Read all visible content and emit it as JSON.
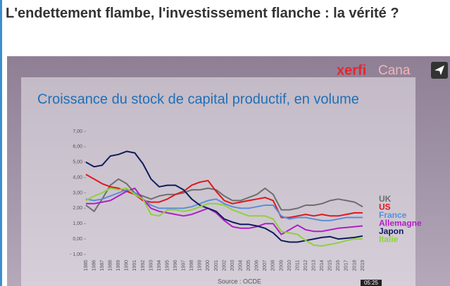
{
  "page_title": "L'endettement flambe, l'investissement flanche : la vérité ?",
  "brand": "xerfi",
  "brand_channel": "Cana",
  "duration": "05:25",
  "chart_data": {
    "type": "line",
    "title": "Croissance du stock de capital productif, en volume",
    "source": "Source : OCDE",
    "categories": [
      "1985",
      "1986",
      "1987",
      "1988",
      "1989",
      "1990",
      "1991",
      "1992",
      "1993",
      "1994",
      "1995",
      "1996",
      "1997",
      "1998",
      "1999",
      "2000",
      "2001",
      "2002",
      "2003",
      "2004",
      "2005",
      "2006",
      "2007",
      "2008",
      "2009",
      "2010",
      "2011",
      "2012",
      "2013",
      "2014",
      "2015",
      "2016",
      "2017",
      "2018",
      "2019"
    ],
    "ylim": [
      -1,
      7
    ],
    "yticks": [
      {
        "value": -1,
        "label": "- 1,00"
      },
      {
        "value": 0,
        "label": "0,00"
      },
      {
        "value": 1,
        "label": "1,00"
      },
      {
        "value": 2,
        "label": "2,00"
      },
      {
        "value": 3,
        "label": "3,00"
      },
      {
        "value": 4,
        "label": "4,00"
      },
      {
        "value": 5,
        "label": "5,00"
      },
      {
        "value": 6,
        "label": "6,00"
      },
      {
        "value": 7,
        "label": "7,00"
      }
    ],
    "series": [
      {
        "name": "UK",
        "color": "#6e6e6e",
        "values": [
          2.2,
          1.8,
          2.6,
          3.5,
          3.9,
          3.6,
          3.0,
          2.8,
          2.6,
          2.8,
          2.9,
          2.9,
          3.0,
          3.2,
          3.2,
          3.3,
          3.2,
          2.8,
          2.5,
          2.5,
          2.7,
          2.9,
          3.3,
          2.9,
          1.9,
          1.9,
          2.0,
          2.2,
          2.2,
          2.3,
          2.5,
          2.6,
          2.5,
          2.4,
          2.1
        ]
      },
      {
        "name": "US",
        "color": "#e0161c",
        "values": [
          4.2,
          3.9,
          3.6,
          3.4,
          3.3,
          3.1,
          2.9,
          2.5,
          2.4,
          2.4,
          2.6,
          2.9,
          3.1,
          3.5,
          3.7,
          3.8,
          3.1,
          2.5,
          2.3,
          2.4,
          2.5,
          2.6,
          2.7,
          2.5,
          1.4,
          1.4,
          1.5,
          1.6,
          1.5,
          1.6,
          1.5,
          1.5,
          1.6,
          1.7,
          1.7
        ]
      },
      {
        "name": "France",
        "color": "#5b8ed6",
        "values": [
          2.6,
          2.5,
          2.6,
          2.8,
          3.0,
          3.2,
          3.0,
          2.6,
          2.2,
          2.0,
          2.0,
          2.0,
          2.0,
          2.1,
          2.3,
          2.5,
          2.6,
          2.3,
          2.1,
          2.0,
          2.0,
          2.1,
          2.2,
          2.2,
          1.5,
          1.3,
          1.4,
          1.4,
          1.3,
          1.2,
          1.2,
          1.3,
          1.4,
          1.4,
          1.4
        ]
      },
      {
        "name": "Allemagne",
        "color": "#b01ec8",
        "values": [
          2.3,
          2.3,
          2.4,
          2.5,
          2.8,
          3.1,
          3.3,
          2.6,
          2.0,
          1.8,
          1.7,
          1.6,
          1.5,
          1.6,
          1.8,
          2.0,
          1.7,
          1.2,
          0.8,
          0.7,
          0.7,
          0.8,
          1.0,
          1.0,
          0.3,
          0.6,
          0.9,
          0.6,
          0.5,
          0.5,
          0.6,
          0.7,
          0.75,
          0.8,
          0.85
        ]
      },
      {
        "name": "Japon",
        "color": "#101a5c",
        "values": [
          5.0,
          4.7,
          4.8,
          5.4,
          5.5,
          5.7,
          5.6,
          4.9,
          3.9,
          3.4,
          3.5,
          3.5,
          3.2,
          2.6,
          2.2,
          2.0,
          1.8,
          1.3,
          1.1,
          0.95,
          0.95,
          0.85,
          0.7,
          0.4,
          -0.1,
          -0.2,
          -0.2,
          -0.1,
          0.0,
          0.1,
          0.15,
          0.0,
          0.05,
          0.1,
          0.2
        ]
      },
      {
        "name": "Italie",
        "color": "#8fd13a",
        "values": [
          2.5,
          2.8,
          3.0,
          3.3,
          3.2,
          3.3,
          2.9,
          2.6,
          1.6,
          1.5,
          1.9,
          1.9,
          1.8,
          1.9,
          2.1,
          2.3,
          2.3,
          2.2,
          1.9,
          1.7,
          1.5,
          1.5,
          1.5,
          1.3,
          0.5,
          0.4,
          0.3,
          -0.1,
          -0.4,
          -0.45,
          -0.35,
          -0.25,
          -0.1,
          0.0,
          0.0
        ]
      }
    ]
  }
}
